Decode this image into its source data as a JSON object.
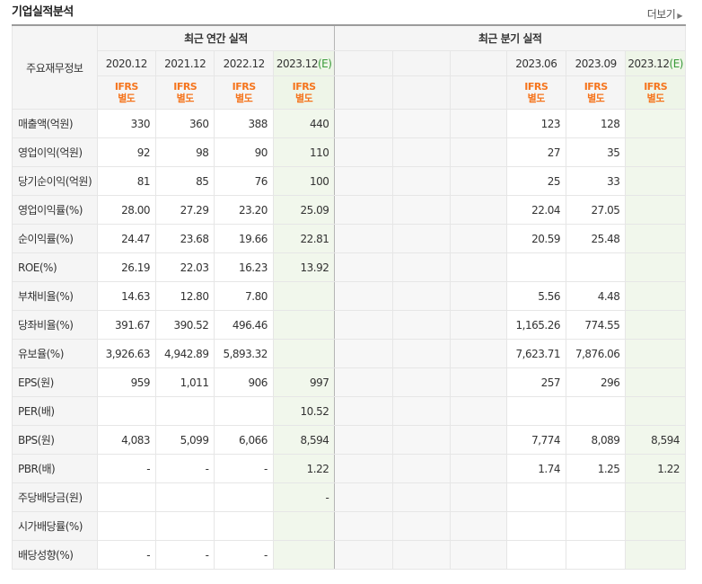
{
  "header": {
    "title": "기업실적분석",
    "more_label": "더보기"
  },
  "table": {
    "row_header_label": "주요재무정보",
    "annual_label": "최근 연간 실적",
    "quarter_label": "최근 분기 실적",
    "annual_periods": [
      "2020.12",
      "2021.12",
      "2022.12",
      "2023.12"
    ],
    "annual_est_mark": "(E)",
    "quarter_periods": [
      "",
      "",
      "",
      "2023.06",
      "2023.09",
      "2023.12"
    ],
    "quarter_est_mark": "(E)",
    "ifrs": "IFRS",
    "basis": "별도",
    "rows": [
      {
        "label": "매출액(억원)",
        "annual": [
          "330",
          "360",
          "388",
          "440"
        ],
        "quarter": [
          "",
          "",
          "",
          "123",
          "128",
          ""
        ]
      },
      {
        "label": "영업이익(억원)",
        "annual": [
          "92",
          "98",
          "90",
          "110"
        ],
        "quarter": [
          "",
          "",
          "",
          "27",
          "35",
          ""
        ]
      },
      {
        "label": "당기순이익(억원)",
        "annual": [
          "81",
          "85",
          "76",
          "100"
        ],
        "quarter": [
          "",
          "",
          "",
          "25",
          "33",
          ""
        ]
      },
      {
        "label": "영업이익률(%)",
        "annual": [
          "28.00",
          "27.29",
          "23.20",
          "25.09"
        ],
        "quarter": [
          "",
          "",
          "",
          "22.04",
          "27.05",
          ""
        ]
      },
      {
        "label": "순이익률(%)",
        "annual": [
          "24.47",
          "23.68",
          "19.66",
          "22.81"
        ],
        "quarter": [
          "",
          "",
          "",
          "20.59",
          "25.48",
          ""
        ]
      },
      {
        "label": "ROE(%)",
        "annual": [
          "26.19",
          "22.03",
          "16.23",
          "13.92"
        ],
        "quarter": [
          "",
          "",
          "",
          "",
          "",
          ""
        ]
      },
      {
        "label": "부채비율(%)",
        "annual": [
          "14.63",
          "12.80",
          "7.80",
          ""
        ],
        "quarter": [
          "",
          "",
          "",
          "5.56",
          "4.48",
          ""
        ]
      },
      {
        "label": "당좌비율(%)",
        "annual": [
          "391.67",
          "390.52",
          "496.46",
          ""
        ],
        "quarter": [
          "",
          "",
          "",
          "1,165.26",
          "774.55",
          ""
        ]
      },
      {
        "label": "유보율(%)",
        "annual": [
          "3,926.63",
          "4,942.89",
          "5,893.32",
          ""
        ],
        "quarter": [
          "",
          "",
          "",
          "7,623.71",
          "7,876.06",
          ""
        ]
      },
      {
        "label": "EPS(원)",
        "annual": [
          "959",
          "1,011",
          "906",
          "997"
        ],
        "quarter": [
          "",
          "",
          "",
          "257",
          "296",
          ""
        ]
      },
      {
        "label": "PER(배)",
        "annual": [
          "",
          "",
          "",
          "10.52"
        ],
        "quarter": [
          "",
          "",
          "",
          "",
          "",
          ""
        ]
      },
      {
        "label": "BPS(원)",
        "annual": [
          "4,083",
          "5,099",
          "6,066",
          "8,594"
        ],
        "quarter": [
          "",
          "",
          "",
          "7,774",
          "8,089",
          "8,594"
        ]
      },
      {
        "label": "PBR(배)",
        "annual": [
          "-",
          "-",
          "-",
          "1.22"
        ],
        "quarter": [
          "",
          "",
          "",
          "1.74",
          "1.25",
          "1.22"
        ]
      },
      {
        "label": "주당배당금(원)",
        "annual": [
          "",
          "",
          "",
          "-"
        ],
        "quarter": [
          "",
          "",
          "",
          "",
          "",
          ""
        ]
      },
      {
        "label": "시가배당률(%)",
        "annual": [
          "",
          "",
          "",
          ""
        ],
        "quarter": [
          "",
          "",
          "",
          "",
          "",
          ""
        ]
      },
      {
        "label": "배당성향(%)",
        "annual": [
          "-",
          "-",
          "-",
          ""
        ],
        "quarter": [
          "",
          "",
          "",
          "",
          "",
          ""
        ]
      }
    ]
  }
}
